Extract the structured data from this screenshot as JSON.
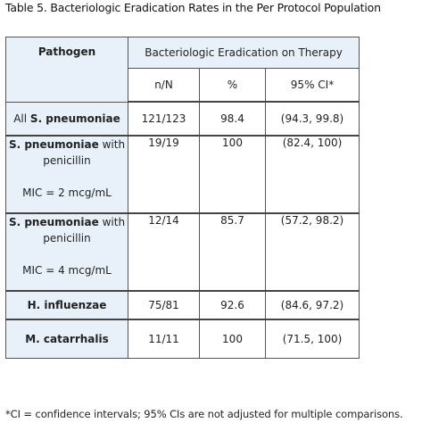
{
  "caption": "Table 5. Bacteriologic Eradication Rates in the Per Protocol Population",
  "headers": {
    "pathogen": "Pathogen",
    "group": "Bacteriologic Eradication on Therapy",
    "nN": "n/N",
    "pct": "%",
    "ci": "95% CI*"
  },
  "rows": [
    {
      "prefix": "All ",
      "name": "S. pneumoniae",
      "nN": "121/123",
      "pct": "98.4",
      "ci": "(94.3, 99.8)"
    },
    {
      "name": "S. pneumoniae",
      "suffix": " with penicillin",
      "mic": "MIC = 2 mcg/mL",
      "nN": "19/19",
      "pct": "100",
      "ci": "(82.4, 100)"
    },
    {
      "name": "S. pneumoniae",
      "suffix": " with penicillin",
      "mic": "MIC = 4 mcg/mL",
      "nN": "12/14",
      "pct": "85.7",
      "ci": "(57.2, 98.2)"
    },
    {
      "name": "H. influenzae",
      "nN": "75/81",
      "pct": "92.6",
      "ci": "(84.6, 97.2)"
    },
    {
      "name": "M. catarrhalis",
      "nN": "11/11",
      "pct": "100",
      "ci": "(71.5, 100)"
    }
  ],
  "footnote": "*CI = confidence intervals; 95% CIs are not adjusted for multiple comparisons."
}
